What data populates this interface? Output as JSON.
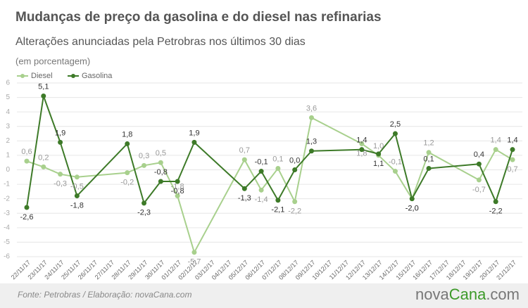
{
  "chart_data": {
    "type": "line",
    "title": "Mudanças de preço da gasolina e do diesel nas refinarias",
    "subtitle": "Alterações anunciadas pela Petrobras nos últimos 30 dias",
    "unit_note": "(em porcentagem)",
    "categories": [
      "22/11/17",
      "23/11/17",
      "24/11/17",
      "25/11/17",
      "26/11/17",
      "27/11/17",
      "28/11/17",
      "29/11/17",
      "30/11/17",
      "01/12/17",
      "02/12/17",
      "03/12/17",
      "04/12/17",
      "05/12/17",
      "06/12/17",
      "07/12/17",
      "08/12/17",
      "09/12/17",
      "10/12/17",
      "11/12/17",
      "12/12/17",
      "13/12/17",
      "14/12/17",
      "15/12/17",
      "16/12/17",
      "17/12/17",
      "18/12/17",
      "19/12/17",
      "20/12/17",
      "21/12/17"
    ],
    "series": [
      {
        "name": "Diesel",
        "color": "#a8d08d",
        "values": [
          0.6,
          0.2,
          -0.3,
          -0.5,
          null,
          null,
          -0.2,
          0.3,
          0.5,
          -1.8,
          -5.7,
          null,
          null,
          0.7,
          -1.4,
          0.1,
          -2.2,
          3.6,
          null,
          null,
          1.8,
          1.0,
          -0.1,
          -2.0,
          1.2,
          null,
          null,
          -0.7,
          1.4,
          0.7
        ],
        "value_labels": [
          "0,6",
          "0,2",
          "-0,3",
          "-0,5",
          null,
          null,
          "-0,2",
          "0,3",
          "0,5",
          "-1,8",
          "-5,7",
          null,
          null,
          "0,7",
          "-1,4",
          "0,1",
          "-2,2",
          "3,6",
          null,
          null,
          "1,8",
          "1,0",
          "-0,1",
          "-2,0",
          "1,2",
          null,
          null,
          "-0,7",
          "1,4",
          "0,7"
        ]
      },
      {
        "name": "Gasolina",
        "color": "#3d7a28",
        "values": [
          -2.6,
          5.1,
          1.9,
          -1.8,
          null,
          null,
          1.8,
          -2.3,
          -0.8,
          -0.8,
          1.9,
          null,
          null,
          -1.3,
          -0.1,
          -2.1,
          0.0,
          1.3,
          null,
          null,
          1.4,
          1.1,
          2.5,
          -2.0,
          0.1,
          null,
          null,
          0.4,
          -2.2,
          1.4
        ],
        "value_labels": [
          "-2,6",
          "5,1",
          "1,9",
          "-1,8",
          null,
          null,
          "1,8",
          "-2,3",
          "-0,8",
          "-0,8",
          "1,9",
          null,
          null,
          "-1,3",
          "-0,1",
          "-2,1",
          "0,0",
          "1,3",
          null,
          null,
          "1,4",
          "1,1",
          "2,5",
          "-2,0",
          "0,1",
          null,
          null,
          "0,4",
          "-2,2",
          "1,4"
        ]
      }
    ],
    "ylim": [
      -6,
      6
    ],
    "yticks": [
      -6,
      -5,
      -4,
      -3,
      -2,
      -1,
      0,
      1,
      2,
      3,
      4,
      5,
      6
    ],
    "grid": true,
    "legend": "top-left",
    "source": "Fonte: Petrobras  / Elaboração: novaCana.com",
    "logo": [
      "nova",
      "Cana",
      ".com"
    ]
  }
}
